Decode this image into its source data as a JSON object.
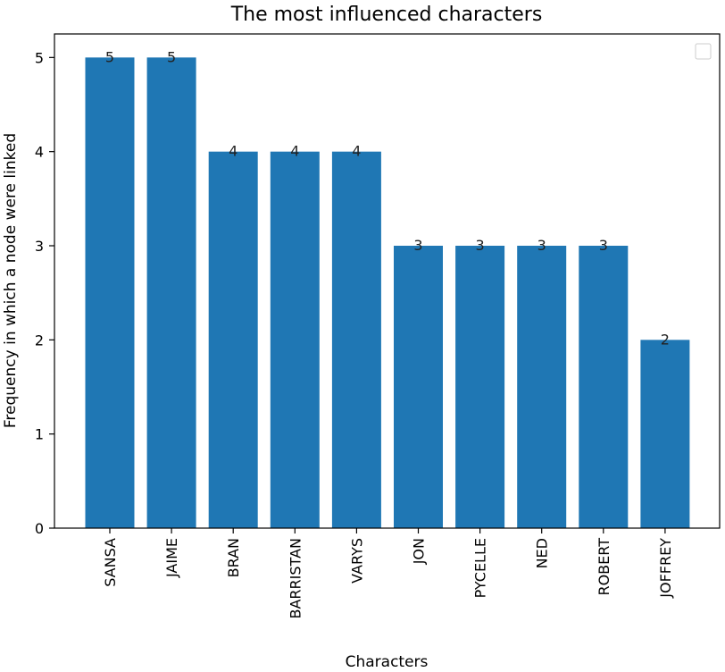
{
  "chart_data": {
    "type": "bar",
    "title": "The most influenced characters",
    "xlabel": "Characters",
    "ylabel": "Frequency in which a node were linked",
    "categories": [
      "SANSA",
      "JAIME",
      "BRAN",
      "BARRISTAN",
      "VARYS",
      "JON",
      "PYCELLE",
      "NED",
      "ROBERT",
      "JOFFREY"
    ],
    "values": [
      5,
      5,
      4,
      4,
      4,
      3,
      3,
      3,
      3,
      2
    ],
    "data_labels": [
      "5",
      "5",
      "4",
      "4",
      "4",
      "3",
      "3",
      "3",
      "3",
      "2"
    ],
    "y_ticks": [
      0,
      1,
      2,
      3,
      4,
      5
    ],
    "ylim": [
      0,
      5.25
    ],
    "grid": false,
    "legend": {
      "location": "top-right",
      "entries": []
    },
    "colors": {
      "bar": "#1f77b4"
    }
  }
}
